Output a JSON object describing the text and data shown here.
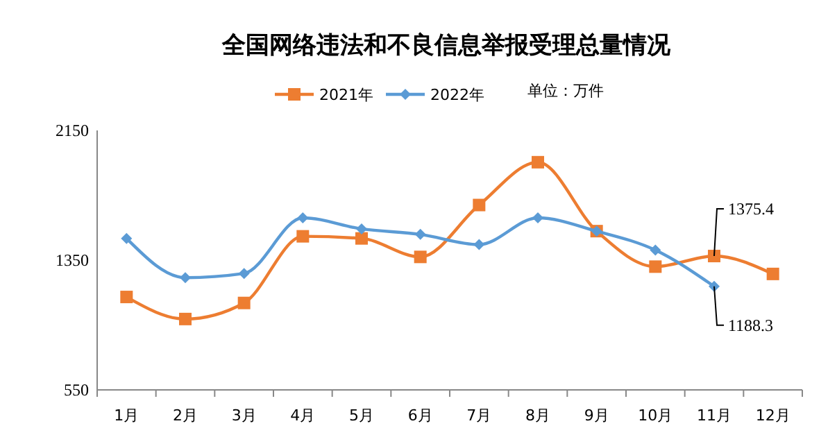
{
  "chart_data": {
    "type": "line",
    "title": "全国网络违法和不良信息举报受理总量情况",
    "annotations": [
      "单位：万件"
    ],
    "categories": [
      "1月",
      "2月",
      "3月",
      "4月",
      "5月",
      "6月",
      "7月",
      "8月",
      "9月",
      "10月",
      "11月",
      "12月"
    ],
    "series": [
      {
        "name": "2021年",
        "color": "#ed7d31",
        "marker": "square",
        "values": [
          1123,
          987,
          1086,
          1497,
          1484,
          1370,
          1690,
          1954,
          1529,
          1310,
          1375.4,
          1265
        ],
        "value_labels": [
          null,
          null,
          null,
          null,
          null,
          null,
          null,
          null,
          null,
          null,
          "1375.4",
          null
        ]
      },
      {
        "name": "2022年",
        "color": "#5b9bd5",
        "marker": "diamond",
        "values": [
          1484,
          1242,
          1268,
          1611,
          1543,
          1509,
          1446,
          1611,
          1529,
          1412,
          1188.3,
          null
        ],
        "value_labels": [
          null,
          null,
          null,
          null,
          null,
          null,
          null,
          null,
          null,
          null,
          "1188.3",
          null
        ]
      }
    ],
    "ylim": [
      550,
      2150
    ],
    "yticks": [
      550,
      1350,
      2150
    ],
    "grid": false,
    "legend": "top"
  }
}
